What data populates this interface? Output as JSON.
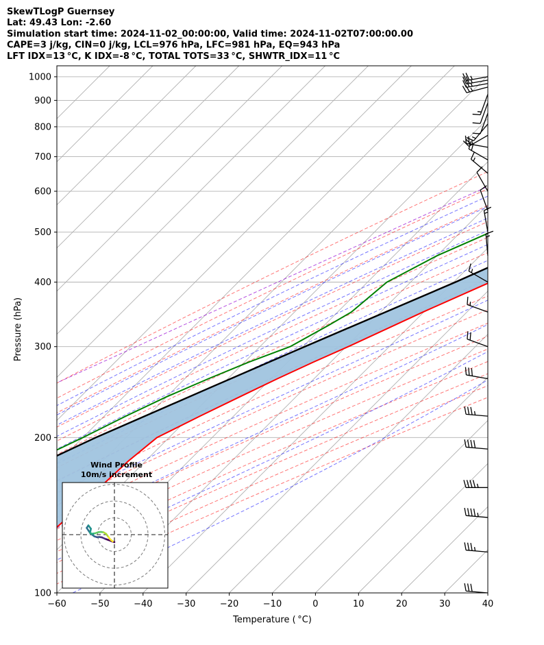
{
  "header": {
    "lines": [
      "SkewTLogP Guernsey",
      "Lat: 49.43   Lon: -2.60",
      "Simulation start time: 2024-11-02_00:00:00, Valid time: 2024-11-02T07:00:00.00",
      "CAPE=3 j/kg, CIN=0 j/kg, LCL=976 hPa, LFC=981 hPa, EQ=943 hPa",
      "LFT IDX=13$^\\circ$C, K IDX=-8$^\\circ$C, TOTAL TOTS=33$^\\circ$C, SHWTR_IDX=11$^\\circ$C"
    ]
  },
  "chart_data": [
    {
      "type": "line",
      "subtype": "skew-t log-p diagram",
      "xlabel": "Temperature ($^\\circ$C)",
      "ylabel": "Pressure (hPa)",
      "xlim": [
        -60,
        40
      ],
      "ylim": [
        1050,
        100
      ],
      "yscale": "log",
      "x_ticks": [
        -60,
        -50,
        -40,
        -30,
        -20,
        -10,
        0,
        10,
        20,
        30,
        40
      ],
      "y_ticks": [
        1000,
        900,
        800,
        700,
        600,
        500,
        400,
        300,
        200,
        100
      ],
      "grid": true,
      "skew_degrees": 45,
      "series": [
        {
          "role": "temperature",
          "color": "#ff0000",
          "p": [
            1000,
            960,
            945,
            920,
            900,
            870,
            850,
            800,
            760,
            700,
            650,
            600,
            550,
            500,
            450,
            400,
            350,
            300,
            280,
            260,
            240,
            220,
            200,
            180,
            160,
            140,
            120,
            100
          ],
          "t": [
            11,
            10.5,
            13,
            15,
            15.5,
            15.2,
            14,
            10.5,
            7.2,
            2,
            -1.5,
            -7,
            -12.5,
            -18.5,
            -24.5,
            -31.5,
            -40.2,
            -49.5,
            -54,
            -58.5,
            -63,
            -67.8,
            -72.8,
            -74,
            -74.5,
            -75,
            -75.8,
            -76.5
          ]
        },
        {
          "role": "dewpoint",
          "color": "#008000",
          "p": [
            1000,
            960,
            945,
            920,
            900,
            870,
            850,
            800,
            760,
            700,
            650,
            600,
            550,
            500,
            450,
            400,
            350,
            330,
            300,
            280,
            260,
            240,
            220,
            200,
            180,
            160,
            140,
            120,
            100
          ],
          "t": [
            10.2,
            10.2,
            8,
            3,
            1,
            1,
            -1,
            -3.5,
            -13,
            -26,
            -20,
            -24.5,
            -35.5,
            -43,
            -50,
            -55.5,
            -56.8,
            -59,
            -63,
            -69,
            -74.5,
            -80,
            -85,
            -90,
            -96,
            -104,
            -107,
            -107,
            -106
          ]
        },
        {
          "role": "parcel",
          "color": "#000000",
          "p": [
            1000,
            976,
            900,
            800,
            700,
            600,
            500,
            400,
            300,
            250,
            200,
            150,
            100
          ],
          "t": [
            13.6,
            11,
            6.6,
            0.6,
            -6.4,
            -14.6,
            -25.2,
            -39.6,
            -59.6,
            -72,
            -87,
            -104,
            -127
          ]
        }
      ],
      "cape_shading": {
        "color": "#a0c4df"
      },
      "dry_adiabats": {
        "color": "#ff0000",
        "theta_c": [
          -30,
          -20,
          -10,
          0,
          10,
          20,
          30,
          40,
          50,
          60,
          70,
          80,
          90,
          100,
          110,
          120,
          130
        ]
      },
      "moist_adiabats": {
        "color": "#0000ff",
        "t0_c": [
          -15,
          -10,
          -5,
          0,
          5,
          10,
          15,
          20,
          25,
          30,
          35
        ]
      },
      "mixing_ratio_line": {
        "color": "#9400d3"
      },
      "wind_barbs": {
        "p": [
          1000,
          985,
          970,
          955,
          925,
          890,
          850,
          810,
          770,
          730,
          690,
          650,
          600,
          550,
          500,
          450,
          400,
          350,
          300,
          260,
          220,
          190,
          160,
          140,
          120,
          100
        ],
        "speed_kt": [
          25,
          25,
          25,
          25,
          15,
          10,
          10,
          15,
          20,
          25,
          20,
          15,
          10,
          10,
          15,
          15,
          15,
          15,
          20,
          30,
          35,
          40,
          45,
          45,
          35,
          30
        ],
        "direction_deg": [
          260,
          260,
          260,
          255,
          200,
          200,
          200,
          220,
          240,
          280,
          300,
          310,
          330,
          340,
          350,
          355,
          300,
          290,
          290,
          280,
          275,
          275,
          270,
          275,
          275,
          275
        ]
      }
    },
    {
      "type": "line",
      "subtype": "hodograph",
      "title": "Wind Profile\n10m/s increment",
      "ring_increment_ms": 10,
      "rings": 3,
      "u": [
        0,
        -1.5,
        -3.5,
        -5.5,
        -7.5,
        -9,
        -10.5,
        -12,
        -14.5,
        -16.5,
        -15.5,
        -14,
        -14.5,
        -13.5,
        -11.5,
        -9.5,
        -8,
        -6.5,
        -5,
        -3.5,
        -2.5,
        -1
      ],
      "v": [
        -4.5,
        -4,
        -3.2,
        -2.5,
        -1.6,
        -1.4,
        -1.5,
        -1,
        1,
        4,
        5.5,
        3.5,
        1.2,
        0.5,
        0.8,
        1.5,
        1.6,
        1.4,
        0.5,
        -1.5,
        -2.8,
        -4
      ]
    }
  ]
}
